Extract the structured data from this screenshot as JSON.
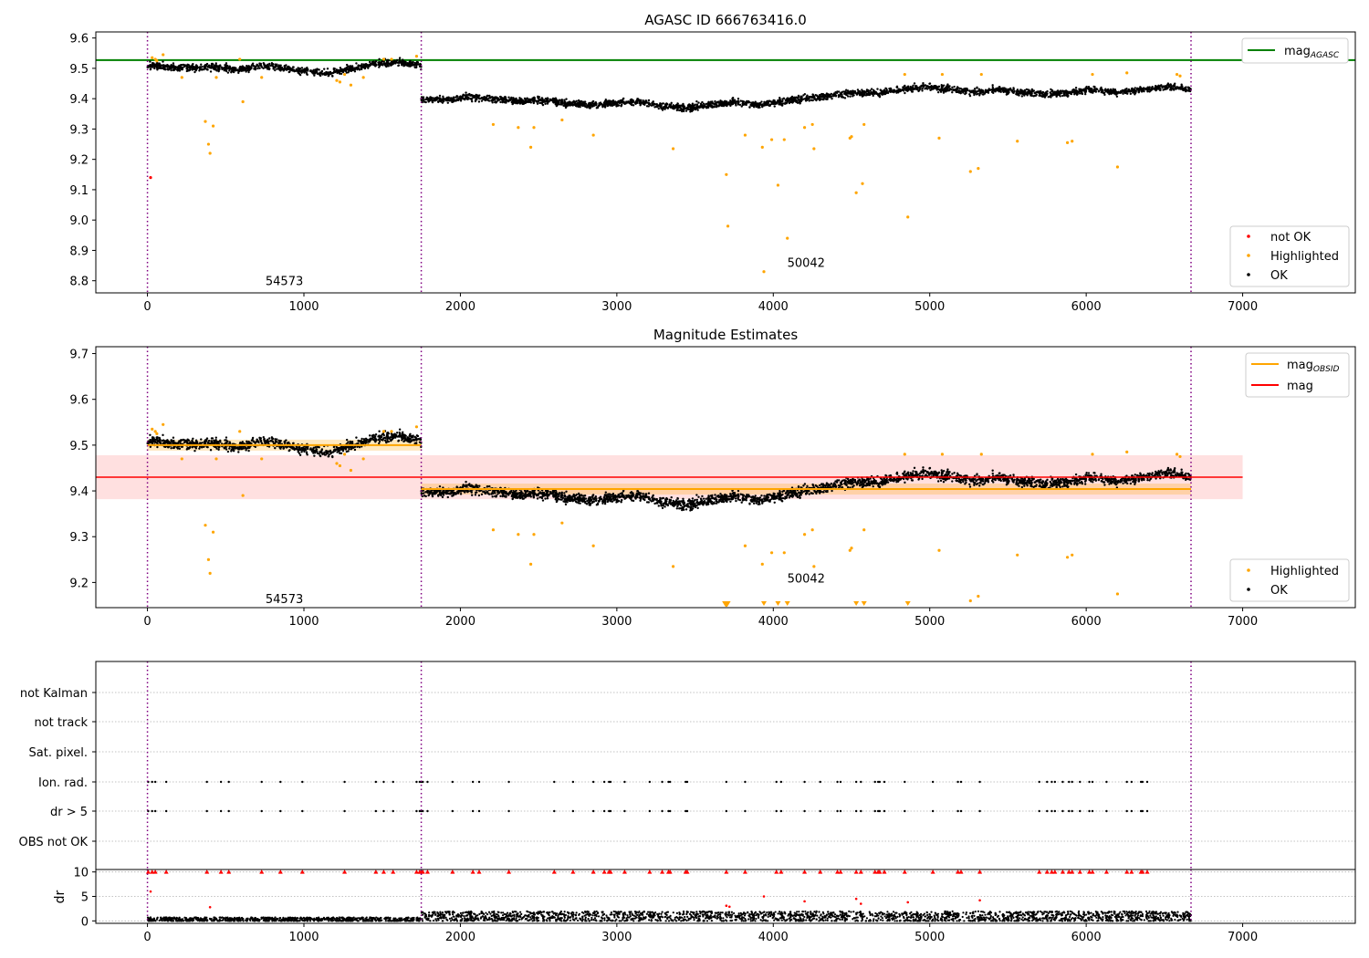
{
  "chart_data": [
    {
      "type": "scatter",
      "title": "AGASC ID 666763416.0",
      "xlim": [
        -330,
        7720
      ],
      "ylim": [
        8.76,
        9.62
      ],
      "xticks": [
        0,
        1000,
        2000,
        3000,
        4000,
        5000,
        6000,
        7000
      ],
      "yticks": [
        8.8,
        8.9,
        9.0,
        9.1,
        9.2,
        9.3,
        9.4,
        9.5,
        9.6
      ],
      "reference_line": {
        "name": "mag",
        "subscript": "AGASC",
        "value": 9.527,
        "color": "#008000"
      },
      "obsid_boundaries": [
        0,
        1750,
        6670
      ],
      "obsid_labels": [
        {
          "text": "54573",
          "x": 875,
          "y": 8.8
        },
        {
          "text": "50042",
          "x": 4210,
          "y": 8.86
        }
      ],
      "segments": [
        {
          "x_range": [
            0,
            1750
          ],
          "mean_values": [
            9.51,
            9.505,
            9.5,
            9.505,
            9.495,
            9.51,
            9.5,
            9.49,
            9.485,
            9.5,
            9.515,
            9.52,
            9.51
          ]
        },
        {
          "x_range": [
            1750,
            6670
          ],
          "mean_values": [
            9.4,
            9.395,
            9.405,
            9.4,
            9.39,
            9.395,
            9.385,
            9.38,
            9.385,
            9.39,
            9.375,
            9.37,
            9.38,
            9.39,
            9.38,
            9.39,
            9.4,
            9.41,
            9.42,
            9.42,
            9.43,
            9.44,
            9.43,
            9.42,
            9.43,
            9.42,
            9.415,
            9.42,
            9.43,
            9.42,
            9.43,
            9.44,
            9.43
          ]
        }
      ],
      "highlighted_points": [
        [
          30,
          9.535
        ],
        [
          50,
          9.53
        ],
        [
          60,
          9.525
        ],
        [
          100,
          9.545
        ],
        [
          220,
          9.47
        ],
        [
          370,
          9.325
        ],
        [
          390,
          9.25
        ],
        [
          400,
          9.22
        ],
        [
          420,
          9.31
        ],
        [
          440,
          9.47
        ],
        [
          590,
          9.53
        ],
        [
          610,
          9.39
        ],
        [
          730,
          9.47
        ],
        [
          1210,
          9.46
        ],
        [
          1230,
          9.455
        ],
        [
          1260,
          9.48
        ],
        [
          1300,
          9.445
        ],
        [
          1380,
          9.47
        ],
        [
          1510,
          9.53
        ],
        [
          1560,
          9.53
        ],
        [
          1720,
          9.54
        ],
        [
          2210,
          9.315
        ],
        [
          2370,
          9.305
        ],
        [
          2450,
          9.24
        ],
        [
          2470,
          9.305
        ],
        [
          2650,
          9.33
        ],
        [
          2850,
          9.28
        ],
        [
          3360,
          9.235
        ],
        [
          3700,
          9.15
        ],
        [
          3710,
          8.98
        ],
        [
          3820,
          9.28
        ],
        [
          3930,
          9.24
        ],
        [
          3940,
          8.83
        ],
        [
          3990,
          9.265
        ],
        [
          4030,
          9.115
        ],
        [
          4070,
          9.265
        ],
        [
          4090,
          8.94
        ],
        [
          4200,
          9.305
        ],
        [
          4250,
          9.315
        ],
        [
          4260,
          9.235
        ],
        [
          4490,
          9.27
        ],
        [
          4500,
          9.275
        ],
        [
          4530,
          9.09
        ],
        [
          4570,
          9.12
        ],
        [
          4580,
          9.315
        ],
        [
          4840,
          9.48
        ],
        [
          4860,
          9.01
        ],
        [
          5060,
          9.27
        ],
        [
          5080,
          9.48
        ],
        [
          5260,
          9.16
        ],
        [
          5310,
          9.17
        ],
        [
          5330,
          9.48
        ],
        [
          5560,
          9.26
        ],
        [
          5880,
          9.255
        ],
        [
          5910,
          9.26
        ],
        [
          6040,
          9.48
        ],
        [
          6200,
          9.175
        ],
        [
          6260,
          9.485
        ],
        [
          6580,
          9.48
        ],
        [
          6600,
          9.475
        ]
      ],
      "not_ok_points": [
        [
          20,
          9.14
        ]
      ],
      "legends": [
        {
          "position": "top-right",
          "entries": [
            {
              "label": "mag",
              "subscript": "AGASC",
              "kind": "line",
              "color": "#008000"
            }
          ]
        },
        {
          "position": "bottom-right",
          "entries": [
            {
              "label": "not OK",
              "kind": "dot",
              "color": "#ff0000"
            },
            {
              "label": "Highlighted",
              "kind": "dot",
              "color": "#ffa500"
            },
            {
              "label": "OK",
              "kind": "dot",
              "color": "#000000"
            }
          ]
        }
      ]
    },
    {
      "type": "scatter",
      "title": "Magnitude Estimates",
      "xlim": [
        -330,
        7720
      ],
      "ylim": [
        9.145,
        9.715
      ],
      "xticks": [
        0,
        1000,
        2000,
        3000,
        4000,
        5000,
        6000,
        7000
      ],
      "yticks": [
        9.2,
        9.3,
        9.4,
        9.5,
        9.6,
        9.7
      ],
      "obsid_boundaries": [
        0,
        1750,
        6670
      ],
      "obsid_labels": [
        {
          "text": "54573",
          "x": 875,
          "y": 9.165
        },
        {
          "text": "50042",
          "x": 4210,
          "y": 9.21
        }
      ],
      "mag": {
        "value": 9.43,
        "band": [
          9.382,
          9.478
        ],
        "x_range": [
          -330,
          7000
        ],
        "color": "#ff0000"
      },
      "mag_obsid": [
        {
          "x_range": [
            0,
            1750
          ],
          "value": 9.5,
          "band": [
            9.488,
            9.512
          ]
        },
        {
          "x_range": [
            1750,
            6670
          ],
          "value": 9.404,
          "band": [
            9.392,
            9.416
          ]
        }
      ],
      "out_of_range_markers_x": [
        3690,
        3700,
        3710,
        3940,
        4030,
        4090,
        4530,
        4580,
        4860
      ],
      "legends": [
        {
          "position": "top-right",
          "entries": [
            {
              "label": "mag",
              "subscript": "OBSID",
              "kind": "line",
              "color": "#ffa500"
            },
            {
              "label": "mag",
              "kind": "line",
              "color": "#ff0000"
            }
          ]
        },
        {
          "position": "bottom-right",
          "entries": [
            {
              "label": "Highlighted",
              "kind": "dot",
              "color": "#ffa500"
            },
            {
              "label": "OK",
              "kind": "dot",
              "color": "#000000"
            }
          ]
        }
      ]
    },
    {
      "type": "scatter",
      "title": "",
      "xlim": [
        -330,
        7720
      ],
      "categories": [
        "not Kalman",
        "not track",
        "Sat. pixel.",
        "Ion. rad.",
        "dr > 5",
        "OBS not OK"
      ],
      "flag_x": [
        5,
        30,
        50,
        120,
        380,
        470,
        520,
        730,
        850,
        990,
        1260,
        1460,
        1510,
        1570,
        1720,
        1740,
        1750,
        1760,
        1790,
        1950,
        2080,
        2120,
        2310,
        2600,
        2720,
        2850,
        2920,
        2950,
        2960,
        3050,
        3210,
        3290,
        3330,
        3340,
        3440,
        3450,
        3700,
        3820,
        4020,
        4050,
        4200,
        4300,
        4410,
        4430,
        4530,
        4560,
        4650,
        4670,
        4680,
        4710,
        4840,
        5020,
        5180,
        5200,
        5320,
        5700,
        5750,
        5780,
        5800,
        5850,
        5890,
        5910,
        5960,
        6020,
        6040,
        6130,
        6260,
        6290,
        6350,
        6360,
        6390
      ],
      "flags": {
        "Ion. rad.": true,
        "dr > 5": true
      }
    },
    {
      "type": "scatter",
      "title": "",
      "xlim": [
        -330,
        7720
      ],
      "ylim": [
        -0.5,
        10.5
      ],
      "yticks": [
        0,
        5,
        10
      ],
      "ylabel": "dr",
      "xticks": [
        0,
        1000,
        2000,
        3000,
        4000,
        5000,
        6000,
        7000
      ],
      "dr_segments": [
        {
          "x_range": [
            0,
            1750
          ],
          "mean": 0.3,
          "spread": 0.6
        },
        {
          "x_range": [
            1750,
            6670
          ],
          "mean": 0.9,
          "spread": 1.5
        }
      ],
      "capped_value": 10,
      "capped_x": [
        5,
        30,
        50,
        120,
        380,
        470,
        520,
        730,
        850,
        990,
        1260,
        1460,
        1510,
        1570,
        1720,
        1740,
        1750,
        1760,
        1790,
        1950,
        2080,
        2120,
        2310,
        2600,
        2720,
        2850,
        2920,
        2950,
        2960,
        3050,
        3210,
        3290,
        3330,
        3340,
        3440,
        3450,
        3700,
        3820,
        4020,
        4050,
        4200,
        4300,
        4410,
        4430,
        4530,
        4560,
        4650,
        4670,
        4680,
        4710,
        4840,
        5020,
        5180,
        5200,
        5320,
        5700,
        5750,
        5780,
        5800,
        5850,
        5890,
        5910,
        5960,
        6020,
        6040,
        6130,
        6260,
        6290,
        6350,
        6360,
        6390
      ],
      "red_points": [
        [
          20,
          6
        ],
        [
          400,
          2.8
        ],
        [
          3700,
          3.1
        ],
        [
          3720,
          2.9
        ],
        [
          3940,
          5
        ],
        [
          4200,
          4
        ],
        [
          4530,
          4.5
        ],
        [
          4560,
          3.5
        ],
        [
          4860,
          3.8
        ],
        [
          5320,
          4.2
        ]
      ]
    }
  ]
}
